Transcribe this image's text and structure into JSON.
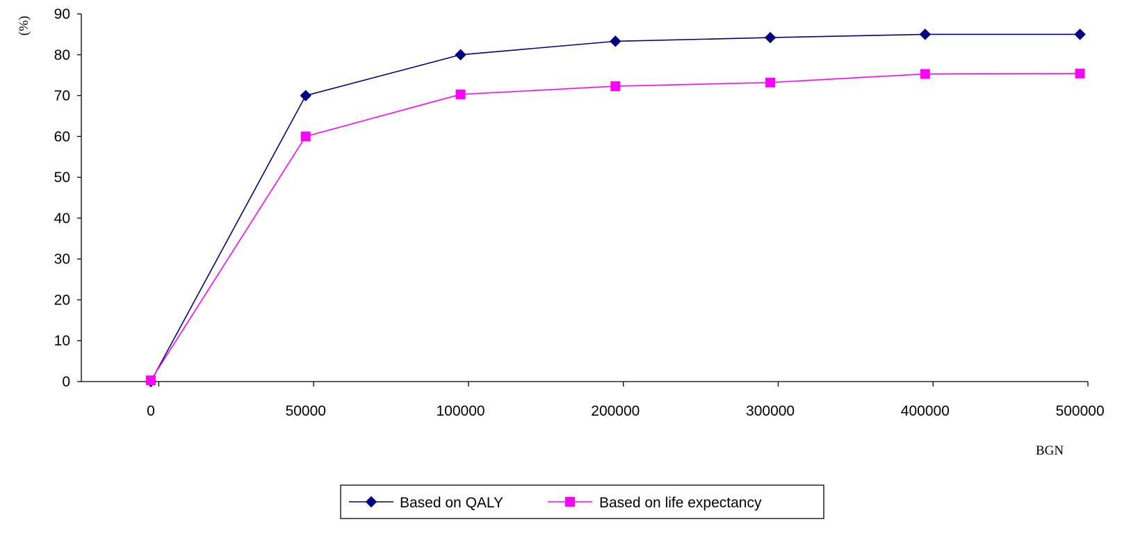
{
  "chart_data": {
    "type": "line",
    "title": "",
    "xlabel": "BGN",
    "ylabel": "(%)",
    "categories": [
      "0",
      "50000",
      "100000",
      "200000",
      "300000",
      "400000",
      "500000"
    ],
    "ylim": [
      0,
      90
    ],
    "yticks": [
      "0",
      "10",
      "20",
      "30",
      "40",
      "50",
      "60",
      "70",
      "80",
      "90"
    ],
    "grid": false,
    "legend_position": "bottom",
    "series": [
      {
        "name": "Based on QALY",
        "values": [
          0,
          70,
          80,
          83.3,
          84.2,
          85,
          85
        ],
        "color": "#000080",
        "marker": "diamond"
      },
      {
        "name": "Based on life expectancy",
        "values": [
          0.3,
          60,
          70.3,
          72.3,
          73.2,
          75.3,
          75.4
        ],
        "color": "#FF00FF",
        "marker": "square"
      }
    ]
  }
}
